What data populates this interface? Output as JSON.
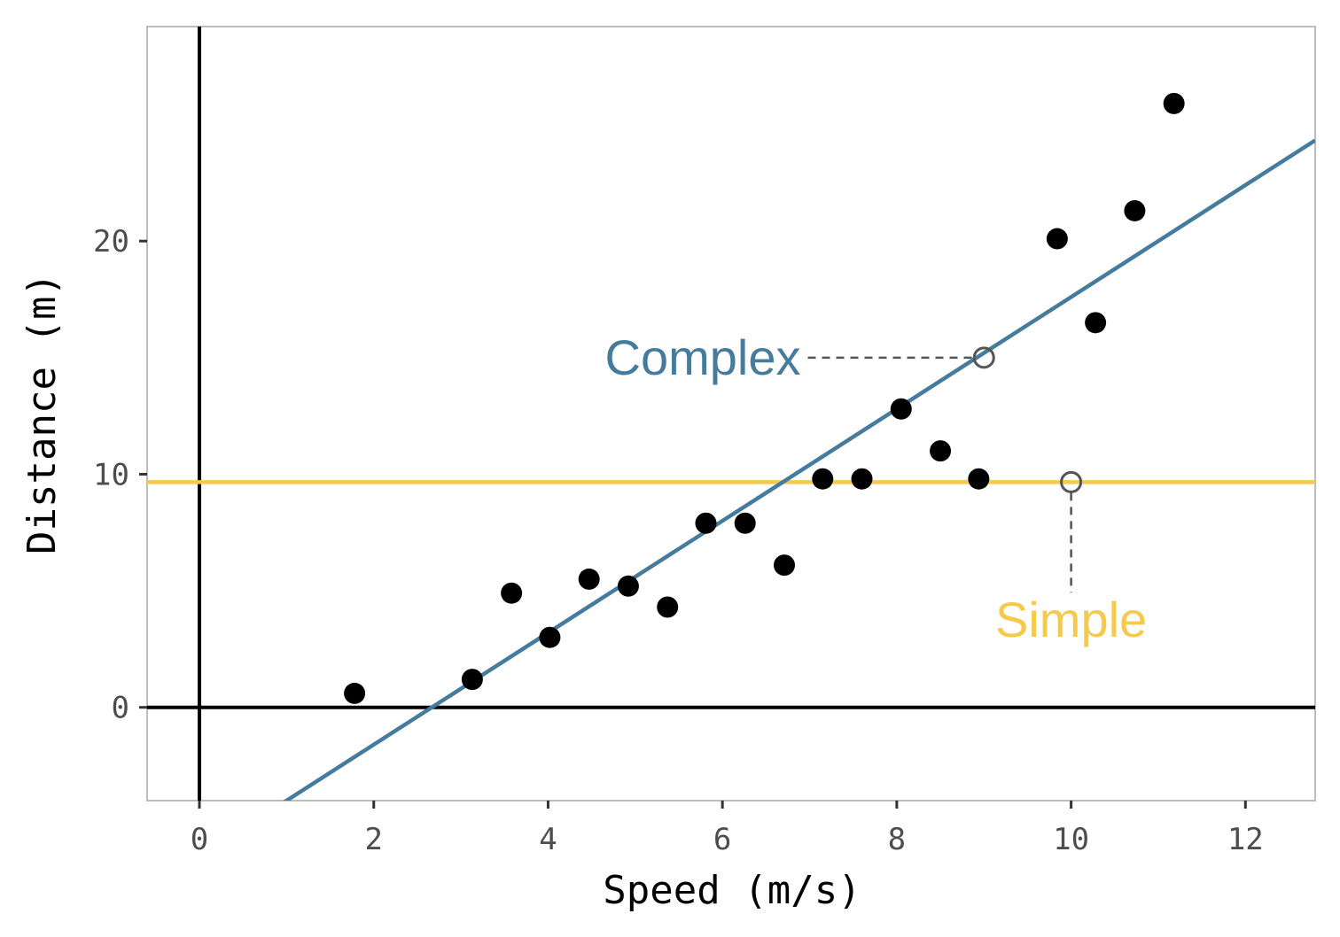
{
  "chart_data": {
    "type": "scatter",
    "title": "",
    "xlabel": "Speed (m/s)",
    "ylabel": "Distance (m)",
    "xlim": [
      -0.6,
      12.8
    ],
    "ylim": [
      -4.0,
      29.2
    ],
    "xticks": [
      0,
      2,
      4,
      6,
      8,
      10,
      12
    ],
    "yticks": [
      0,
      10,
      20
    ],
    "grid": false,
    "points": [
      {
        "x": 1.78,
        "y": 0.6
      },
      {
        "x": 3.13,
        "y": 1.2
      },
      {
        "x": 3.58,
        "y": 4.9
      },
      {
        "x": 4.02,
        "y": 3.0
      },
      {
        "x": 4.47,
        "y": 5.5
      },
      {
        "x": 4.92,
        "y": 5.2
      },
      {
        "x": 5.37,
        "y": 4.3
      },
      {
        "x": 5.81,
        "y": 7.9
      },
      {
        "x": 6.26,
        "y": 7.9
      },
      {
        "x": 6.71,
        "y": 6.1
      },
      {
        "x": 7.15,
        "y": 9.8
      },
      {
        "x": 7.6,
        "y": 9.8
      },
      {
        "x": 8.05,
        "y": 12.8
      },
      {
        "x": 8.5,
        "y": 11.0
      },
      {
        "x": 8.94,
        "y": 9.8
      },
      {
        "x": 9.84,
        "y": 20.1
      },
      {
        "x": 10.28,
        "y": 16.5
      },
      {
        "x": 10.73,
        "y": 21.3
      },
      {
        "x": 11.18,
        "y": 25.9
      }
    ],
    "complex_line": {
      "slope": 2.4,
      "intercept": -6.4
    },
    "simple_line": {
      "y": 9.66
    },
    "annotations": {
      "complex": {
        "label": "Complex",
        "x": 9.0,
        "y": 15.0,
        "text_x": 7.0
      },
      "simple": {
        "label": "Simple",
        "x": 10.0,
        "y": 9.66,
        "text_y": 5.0
      }
    },
    "colors": {
      "complex": "#457B9D",
      "simple": "#F6C94D",
      "points": "#000000",
      "axes": "#000000",
      "annotation_marker": "#555555"
    }
  }
}
